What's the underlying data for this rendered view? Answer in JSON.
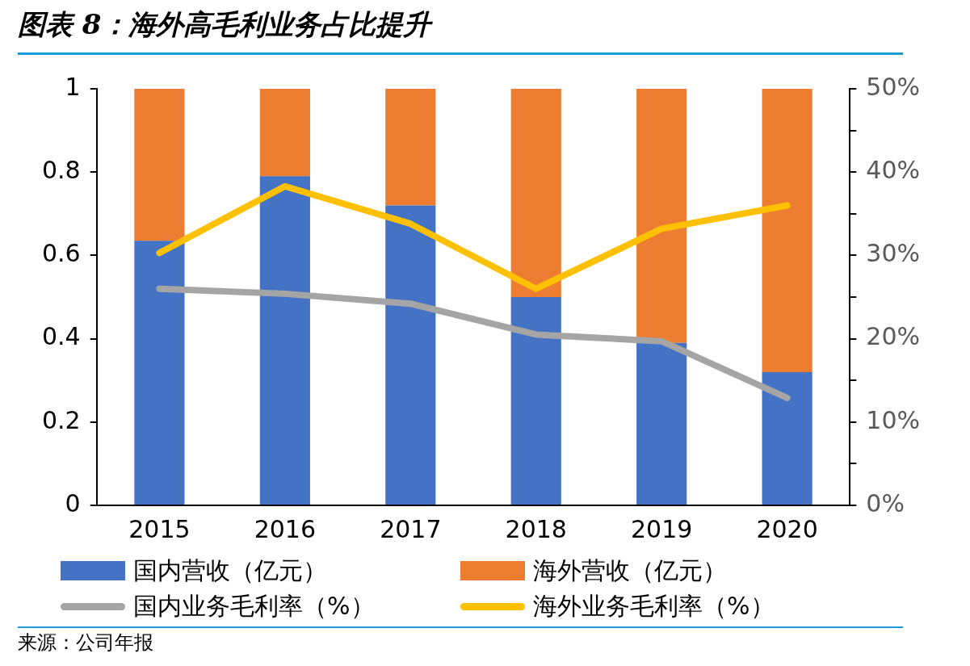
{
  "chart_data": {
    "type": "bar",
    "title": "图表 8：海外高毛利业务占比提升",
    "categories": [
      "2015",
      "2016",
      "2017",
      "2018",
      "2019",
      "2020"
    ],
    "stacked": true,
    "series": [
      {
        "name": "国内营收（亿元）",
        "color": "#4472c4",
        "values": [
          0.635,
          0.79,
          0.72,
          0.5,
          0.39,
          0.32
        ]
      },
      {
        "name": "海外营收（亿元）",
        "color": "#ed7d31",
        "values": [
          0.365,
          0.21,
          0.28,
          0.5,
          0.61,
          0.68
        ]
      },
      {
        "name": "国内业务毛利率（%）",
        "type": "line",
        "axis": "y2",
        "color": "#a5a5a5",
        "values": [
          26.0,
          25.4,
          24.2,
          20.5,
          19.7,
          12.9
        ]
      },
      {
        "name": "海外业务毛利率（%）",
        "type": "line",
        "axis": "y2",
        "color": "#ffc000",
        "values": [
          30.3,
          38.3,
          33.8,
          26.0,
          33.2,
          36.0
        ]
      }
    ],
    "ylim": [
      0,
      1
    ],
    "yticks": [
      0,
      0.2,
      0.4,
      0.6,
      0.8,
      1
    ],
    "y2lim": [
      0,
      50
    ],
    "y2ticks": [
      {
        "value": 0,
        "label": "0%"
      },
      {
        "value": 5,
        "label": null
      },
      {
        "value": 10,
        "label": "10%"
      },
      {
        "value": 15,
        "label": null
      },
      {
        "value": 20,
        "label": "20%"
      },
      {
        "value": 25,
        "label": null
      },
      {
        "value": 30,
        "label": "30%"
      },
      {
        "value": 35,
        "label": null
      },
      {
        "value": 40,
        "label": "40%"
      },
      {
        "value": 45,
        "label": null
      },
      {
        "value": 50,
        "label": "50%"
      }
    ],
    "grid": false,
    "legend": "bottom",
    "marker": "none",
    "annotations": [
      "来源：公司年报"
    ]
  }
}
